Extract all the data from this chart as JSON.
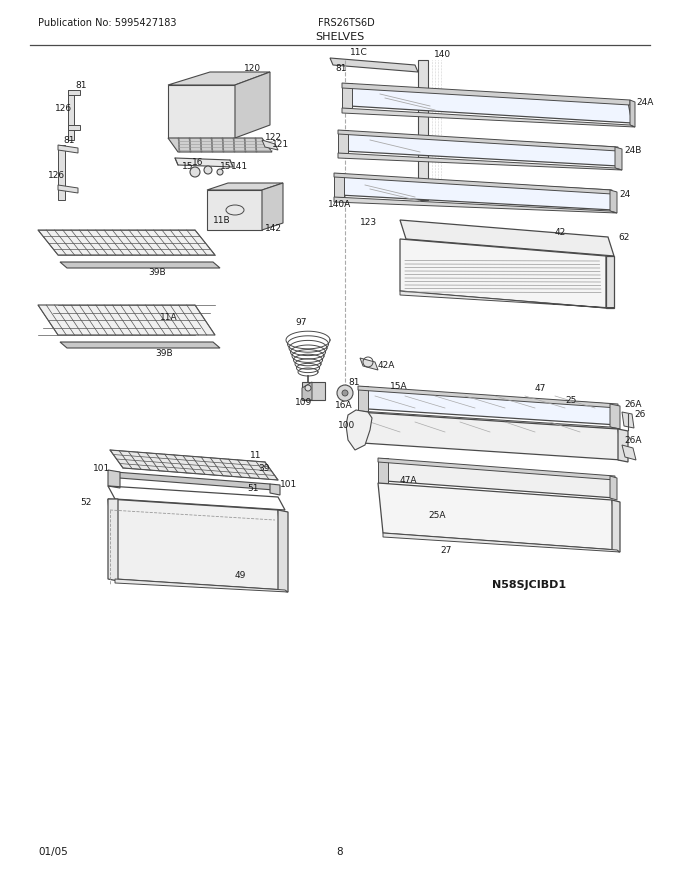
{
  "title": "SHELVES",
  "pub_no": "Publication No: 5995427183",
  "model": "FRS26TS6D",
  "date": "01/05",
  "page": "8",
  "image_id": "N58SJCIBD1",
  "bg_color": "#ffffff",
  "line_color": "#4a4a4a",
  "text_color": "#1a1a1a",
  "figsize": [
    6.8,
    8.8
  ],
  "dpi": 100
}
